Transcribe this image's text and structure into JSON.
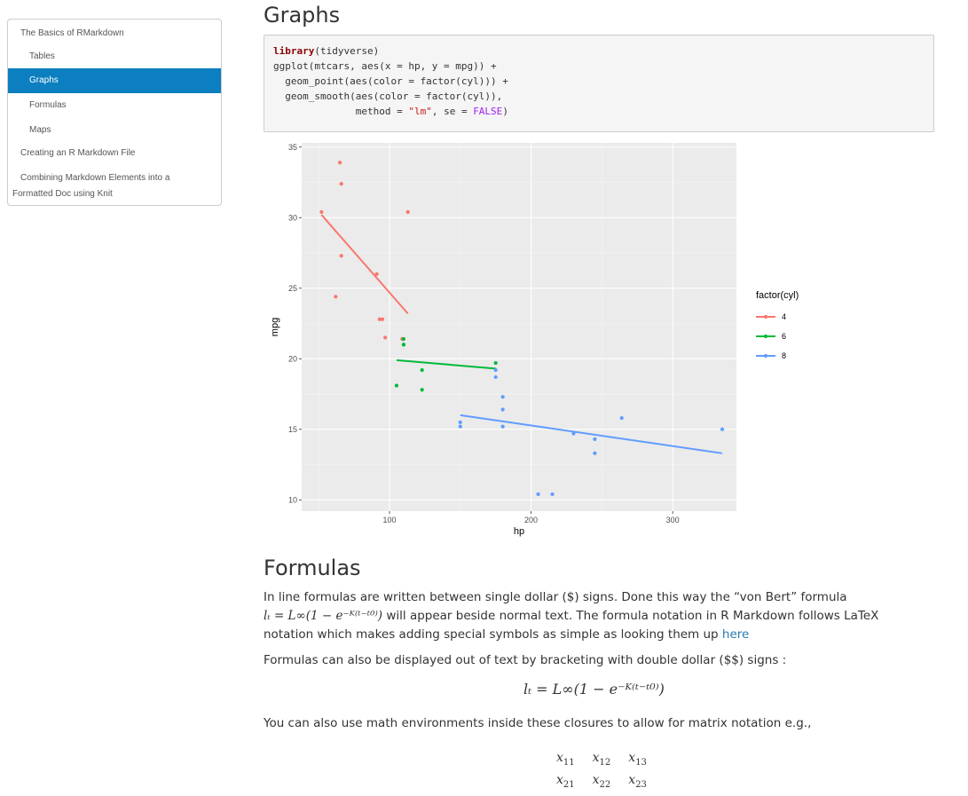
{
  "toc": {
    "items": [
      {
        "label": "The Basics of RMarkdown",
        "active": false
      },
      {
        "label": "Tables",
        "active": false
      },
      {
        "label": "Graphs",
        "active": true
      },
      {
        "label": "Formulas",
        "active": false
      },
      {
        "label": "Maps",
        "active": false
      },
      {
        "label": "Creating an R Markdown File",
        "active": false
      },
      {
        "label": "Combining Markdown Elements into a",
        "active": false
      },
      {
        "label": "Formatted Doc using Knit",
        "active": false
      }
    ]
  },
  "sections": {
    "graphs_title": "Graphs",
    "formulas_title": "Formulas"
  },
  "code": {
    "line1_kw": "library",
    "line1_rest": "(tidyverse)",
    "line2": "ggplot(mtcars, aes(x = hp, y = mpg)) +",
    "line3": "  geom_point(aes(color = factor(cyl))) +",
    "line4": "  geom_smooth(aes(color = factor(cyl)),",
    "line5_pre": "              method = ",
    "line5_str": "\"lm\"",
    "line5_mid": ", se = ",
    "line5_bool": "FALSE",
    "line5_end": ")"
  },
  "chart_data": {
    "type": "scatter",
    "xlabel": "hp",
    "ylabel": "mpg",
    "xlim": [
      38,
      345
    ],
    "ylim": [
      9.2,
      35.3
    ],
    "x_ticks": [
      100,
      200,
      300
    ],
    "y_ticks": [
      10,
      15,
      20,
      25,
      30,
      35
    ],
    "grid": true,
    "legend": {
      "title": "factor(cyl)",
      "position": "right"
    },
    "series": [
      {
        "name": "4",
        "color": "#F8766D",
        "points": [
          [
            93,
            22.8
          ],
          [
            62,
            24.4
          ],
          [
            95,
            22.8
          ],
          [
            66,
            32.4
          ],
          [
            52,
            30.4
          ],
          [
            65,
            33.9
          ],
          [
            97,
            21.5
          ],
          [
            66,
            27.3
          ],
          [
            91,
            26.0
          ],
          [
            113,
            30.4
          ],
          [
            109,
            21.4
          ]
        ],
        "fit": [
          [
            52,
            30.2
          ],
          [
            113,
            23.2
          ]
        ]
      },
      {
        "name": "6",
        "color": "#00BA38",
        "points": [
          [
            110,
            21.0
          ],
          [
            110,
            21.0
          ],
          [
            110,
            21.4
          ],
          [
            105,
            18.1
          ],
          [
            123,
            19.2
          ],
          [
            123,
            17.8
          ],
          [
            175,
            19.7
          ]
        ],
        "fit": [
          [
            105,
            19.9
          ],
          [
            175,
            19.3
          ]
        ]
      },
      {
        "name": "8",
        "color": "#619CFF",
        "points": [
          [
            175,
            18.7
          ],
          [
            245,
            14.3
          ],
          [
            180,
            16.4
          ],
          [
            180,
            17.3
          ],
          [
            180,
            15.2
          ],
          [
            205,
            10.4
          ],
          [
            215,
            10.4
          ],
          [
            230,
            14.7
          ],
          [
            150,
            15.5
          ],
          [
            150,
            15.2
          ],
          [
            245,
            13.3
          ],
          [
            175,
            19.2
          ],
          [
            264,
            15.8
          ],
          [
            335,
            15.0
          ]
        ],
        "fit": [
          [
            150,
            16.0
          ],
          [
            335,
            13.3
          ]
        ]
      }
    ]
  },
  "formulas": {
    "p1_a": "In line formulas are written between single dollar (",
    "p1_dollar": "$",
    "p1_b": ") signs. Done this way the “von Bert” formula",
    "p2_formula": "lₜ = L∞(1 − e⁻ᴷ⁽ᵗ⁻ᵗ⁰⁾)",
    "p2_rest": " will appear beside normal text. The formula notation in R Markdown follows LaTeX",
    "p3_a": "notation which makes adding special symbols as simple as looking them up ",
    "p3_link": "here",
    "p4_a": "Formulas can also be displayed out of text by bracketing with double dollar (",
    "p4_dd": "$$",
    "p4_b": ") signs :",
    "display_formula": "lₜ = L∞(1 − e⁻ᴷ⁽ᵗ⁻ᵗ⁰⁾)",
    "p5": "You can also use math environments inside these closures to allow for matrix notation e.g.,",
    "matrix": [
      [
        "x",
        "11",
        "x",
        "12",
        "x",
        "13"
      ],
      [
        "x",
        "21",
        "x",
        "22",
        "x",
        "23"
      ]
    ]
  }
}
